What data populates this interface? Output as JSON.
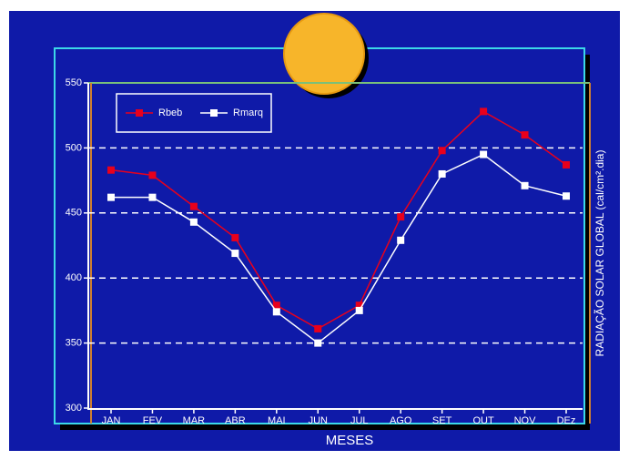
{
  "chart_data": {
    "type": "line",
    "x_label": "MESES",
    "y_label": "RADIAÇÃO SOLAR GLOBAL (cal/cm².dia)",
    "categories": [
      "JAN",
      "FEV",
      "MAR",
      "ABR",
      "MAI",
      "JUN",
      "JUL",
      "AGO",
      "SET",
      "OUT",
      "NOV",
      "DEz"
    ],
    "series": [
      {
        "name": "Rbeb",
        "color": "#e8001c",
        "values": [
          483,
          479,
          455,
          431,
          379,
          361,
          379,
          447,
          498,
          528,
          510,
          487
        ]
      },
      {
        "name": "Rmarq",
        "color": "#ffffff",
        "values": [
          462,
          462,
          443,
          419,
          374,
          350,
          375,
          429,
          480,
          495,
          471,
          463
        ]
      }
    ],
    "ylim": [
      300,
      550
    ],
    "yticks": [
      300,
      350,
      400,
      450,
      500,
      550
    ],
    "grid": true,
    "legend": "upper left"
  }
}
